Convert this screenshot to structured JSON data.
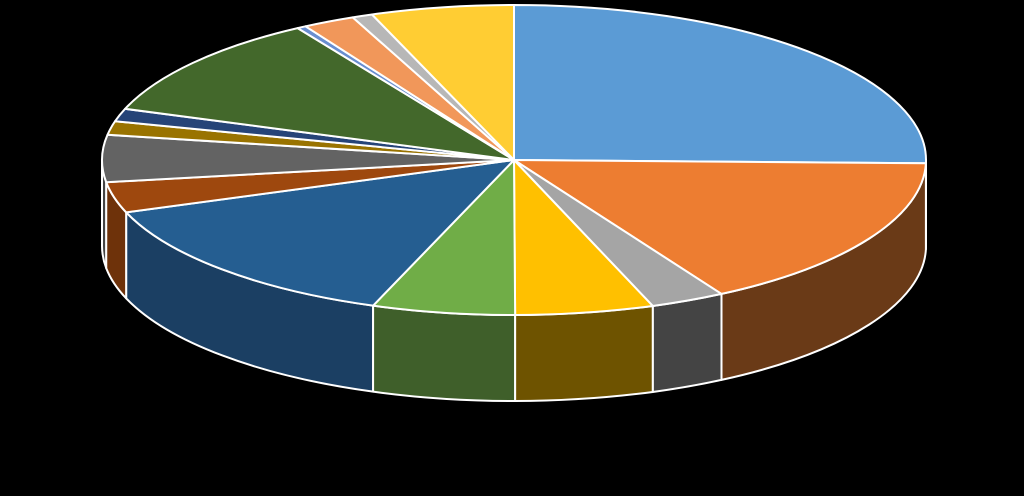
{
  "chart_data": {
    "type": "pie",
    "style": "3d",
    "title": "",
    "background": "#000000",
    "start_angle_deg": -90,
    "direction": "clockwise",
    "values": [
      28.5,
      18.3,
      3.3,
      6.1,
      6.3,
      15.7,
      3.6,
      5.5,
      1.6,
      1.5,
      12.2,
      0.4,
      2.3,
      0.9,
      6.3
    ],
    "colors": [
      "#5B9BD5",
      "#ED7D31",
      "#A5A5A5",
      "#FFC000",
      "#70AD47",
      "#255E91",
      "#9E480E",
      "#636363",
      "#997300",
      "#264478",
      "#43682B",
      "#698ED0",
      "#F1975A",
      "#B7B7B7",
      "#FFCD33"
    ],
    "side_colors": [
      "#3A6A98",
      "#6A3A17",
      "#444444",
      "#6E5300",
      "#3F5F2A",
      "#1B3F63",
      "#6E320A",
      "#444444",
      "#664D00",
      "#1A2F54",
      "#2E471E",
      "#4A6595",
      "#A96A40",
      "#7E7E7E",
      "#B38F24"
    ]
  }
}
